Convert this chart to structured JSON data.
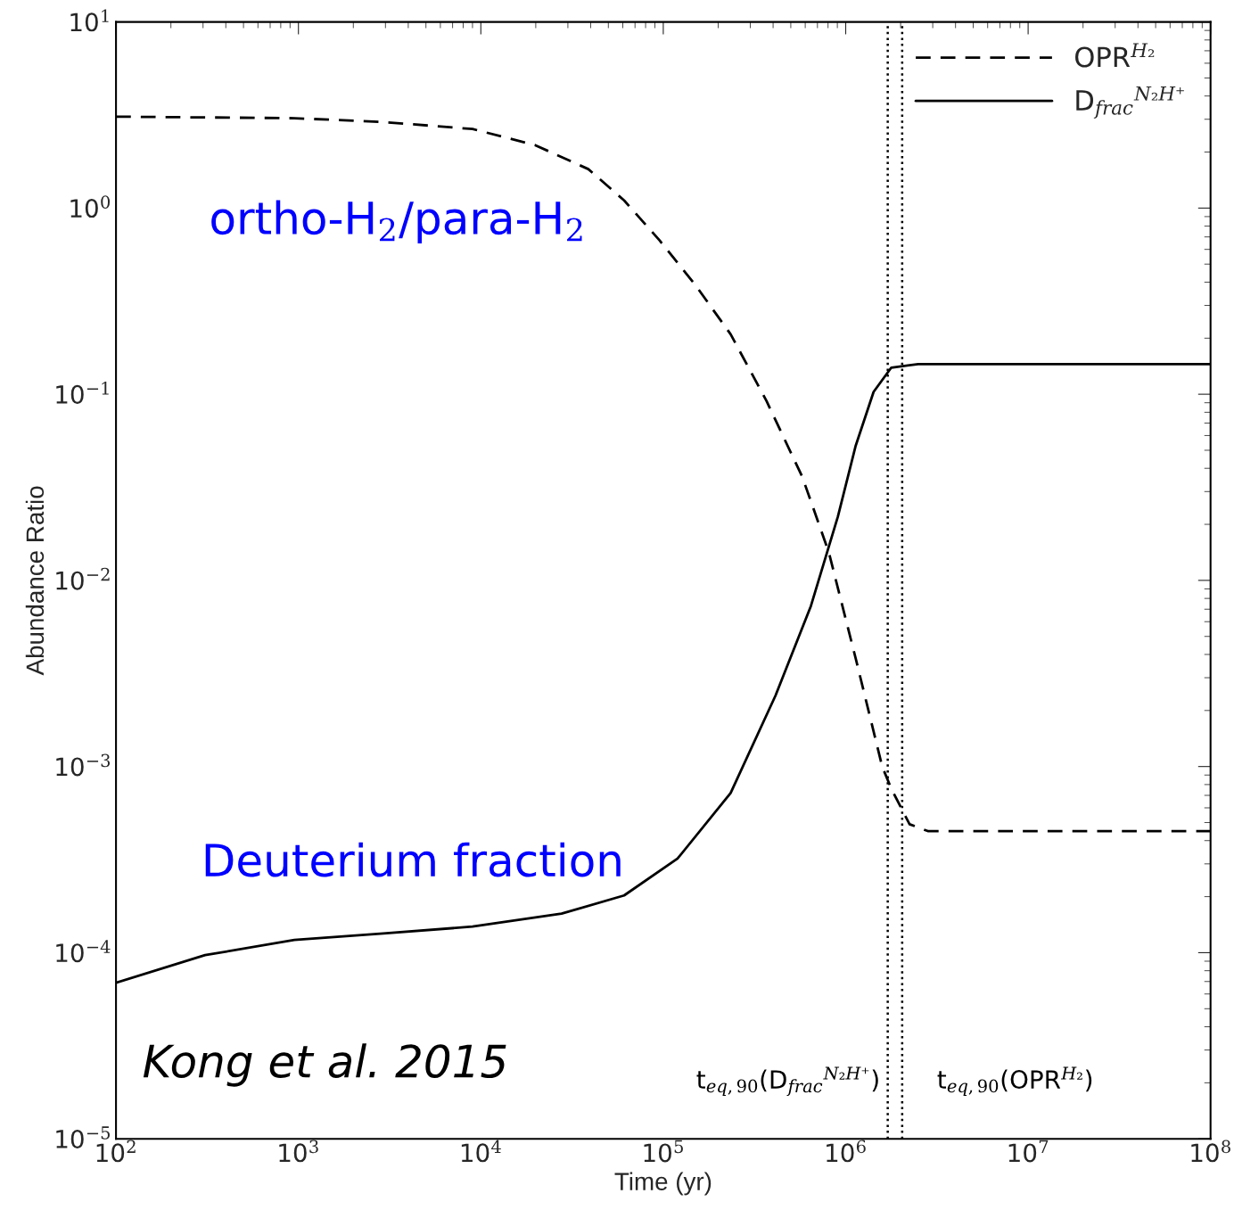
{
  "chart_data": {
    "type": "line",
    "xlabel": "Time (yr)",
    "ylabel": "Abundance Ratio",
    "log": "xy",
    "grid": false,
    "legend": "top right",
    "xlim": [
      100,
      100000000
    ],
    "ylim": [
      1e-05,
      10
    ],
    "xticks": [
      {
        "value": 100,
        "label": "10$^{2}$"
      },
      {
        "value": 1000,
        "label": "10$^{3}$"
      },
      {
        "value": 10000,
        "label": "10$^{4}$"
      },
      {
        "value": 100000,
        "label": "10$^{5}$"
      },
      {
        "value": 1000000,
        "label": "10$^{6}$"
      },
      {
        "value": 10000000,
        "label": "10$^{7}$"
      },
      {
        "value": 100000000,
        "label": "10$^{8}$"
      }
    ],
    "yticks": [
      {
        "value": 1e-05,
        "label": "10$^{−5}$"
      },
      {
        "value": 0.0001,
        "label": "10$^{−4}$"
      },
      {
        "value": 0.001,
        "label": "10$^{−3}$"
      },
      {
        "value": 0.01,
        "label": "10$^{−2}$"
      },
      {
        "value": 0.1,
        "label": "10$^{−1}$"
      },
      {
        "value": 1,
        "label": "10$^{0}$"
      },
      {
        "value": 10,
        "label": "10$^{1}$"
      }
    ],
    "series": [
      {
        "name": "OPR$^{H₂}$",
        "color": "#000000",
        "line_style": "dashed",
        "x": [
          100,
          950,
          2900,
          9000,
          19800,
          38800,
          61000,
          95500,
          150000,
          234000,
          368000,
          578000,
          809000,
          1135000,
          1585000,
          1778000,
          2239000,
          2818000,
          100000000
        ],
        "values": [
          3.1,
          3.04,
          2.9,
          2.66,
          2.18,
          1.62,
          1.1,
          0.67,
          0.386,
          0.21,
          0.092,
          0.036,
          0.0141,
          0.0038,
          0.001,
          0.00076,
          0.00049,
          0.00045,
          0.00045
        ]
      },
      {
        "name": "D$_{frac}$$^{N₂H⁺}$",
        "color": "#000000",
        "line_style": "solid",
        "x": [
          100,
          308,
          950,
          2920,
          9000,
          27700,
          61000,
          119700,
          234000,
          412000,
          645000,
          906000,
          1135000,
          1422000,
          1778000,
          2495000,
          100000000
        ],
        "values": [
          6.9e-05,
          9.7e-05,
          0.000117,
          0.000127,
          0.000138,
          0.000162,
          0.000203,
          0.00032,
          0.00072,
          0.0024,
          0.0073,
          0.022,
          0.053,
          0.103,
          0.139,
          0.145,
          0.145
        ]
      }
    ],
    "ref_lines": [
      {
        "axis": "x",
        "value": 1700000,
        "line_style": "dotted",
        "color": "#000000"
      },
      {
        "axis": "x",
        "value": 2040000,
        "line_style": "dotted",
        "color": "#000000"
      }
    ],
    "annotations": [
      "ortho-H$_{2}$/para-H$_{2}$",
      "Deuterium fraction",
      "Kong et al. 2015",
      "t$_{eq,90}$(D$_{frac}$$^{N₂H⁺}$)",
      "t$_{eq,90}$(OPR$^{H₂}$)"
    ]
  }
}
